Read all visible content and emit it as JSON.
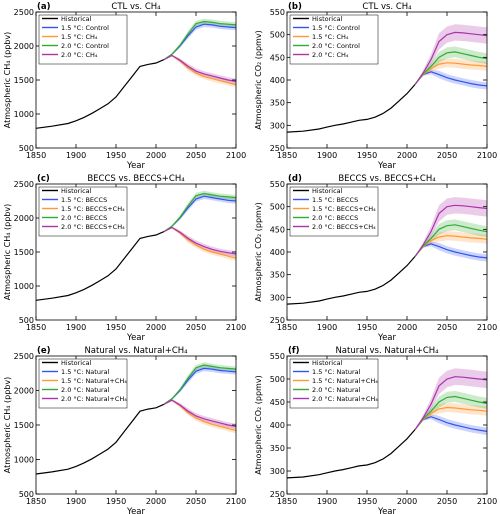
{
  "chart_data": [
    {
      "type": "line",
      "panel_label": "(a)",
      "title": "CTL vs. CH₄",
      "xlabel": "Year",
      "ylabel": "Atmospheric CH₄ (ppbv)",
      "xlim": [
        1850,
        2100
      ],
      "ylim": [
        500,
        2500
      ],
      "xticks": [
        1850,
        1900,
        1950,
        2000,
        2050,
        2100
      ],
      "yticks": [
        500,
        1000,
        1500,
        2000,
        2500
      ],
      "legend": "top-left",
      "series": [
        {
          "name": "Historical",
          "color": "#000000",
          "x": [
            1850,
            1870,
            1890,
            1900,
            1910,
            1920,
            1930,
            1940,
            1950,
            1960,
            1970,
            1980,
            1990,
            2000,
            2010
          ],
          "y": [
            790,
            820,
            860,
            900,
            950,
            1010,
            1080,
            1150,
            1250,
            1400,
            1550,
            1700,
            1730,
            1750,
            1800
          ]
        },
        {
          "name": "1.5 °C: Control",
          "color": "#3355ee",
          "x": [
            2010,
            2020,
            2030,
            2040,
            2050,
            2060,
            2070,
            2080,
            2090,
            2100
          ],
          "y": [
            1800,
            1880,
            2000,
            2150,
            2280,
            2320,
            2310,
            2290,
            2280,
            2270
          ],
          "band": 40
        },
        {
          "name": "1.5 °C: CH₄",
          "color": "#ff9933",
          "x": [
            2010,
            2020,
            2030,
            2040,
            2050,
            2060,
            2070,
            2080,
            2090,
            2100
          ],
          "y": [
            1800,
            1860,
            1780,
            1680,
            1600,
            1550,
            1520,
            1490,
            1460,
            1430
          ],
          "band": 40
        },
        {
          "name": "2.0 °C: Control",
          "color": "#33aa33",
          "x": [
            2010,
            2020,
            2030,
            2040,
            2050,
            2060,
            2070,
            2080,
            2090,
            2100
          ],
          "y": [
            1800,
            1880,
            2010,
            2180,
            2330,
            2360,
            2350,
            2330,
            2320,
            2310
          ],
          "band": 40
        },
        {
          "name": "2.0 °C: CH₄",
          "color": "#aa33aa",
          "x": [
            2010,
            2020,
            2030,
            2040,
            2050,
            2060,
            2070,
            2080,
            2090,
            2100
          ],
          "y": [
            1800,
            1860,
            1790,
            1700,
            1630,
            1590,
            1560,
            1530,
            1500,
            1480
          ],
          "band": 40
        }
      ]
    },
    {
      "type": "line",
      "panel_label": "(b)",
      "title": "CTL vs. CH₄",
      "xlabel": "Year",
      "ylabel": "Atmospheric CO₂ (ppmv)",
      "xlim": [
        1850,
        2100
      ],
      "ylim": [
        250,
        550
      ],
      "xticks": [
        1850,
        1900,
        1950,
        2000,
        2050,
        2100
      ],
      "yticks": [
        250,
        300,
        350,
        400,
        450,
        500,
        550
      ],
      "legend": "top-left",
      "series": [
        {
          "name": "Historical",
          "color": "#000000",
          "x": [
            1850,
            1870,
            1890,
            1900,
            1910,
            1920,
            1930,
            1940,
            1950,
            1960,
            1970,
            1980,
            1990,
            2000,
            2010
          ],
          "y": [
            285,
            287,
            292,
            296,
            300,
            303,
            307,
            311,
            313,
            318,
            326,
            338,
            354,
            370,
            390
          ]
        },
        {
          "name": "1.5 °C: Control",
          "color": "#3355ee",
          "x": [
            2010,
            2020,
            2030,
            2040,
            2050,
            2060,
            2070,
            2080,
            2090,
            2100
          ],
          "y": [
            390,
            412,
            418,
            412,
            405,
            400,
            396,
            392,
            389,
            387
          ],
          "band": 8
        },
        {
          "name": "1.5 °C: CH₄",
          "color": "#ff9933",
          "x": [
            2010,
            2020,
            2030,
            2040,
            2050,
            2060,
            2070,
            2080,
            2090,
            2100
          ],
          "y": [
            390,
            412,
            425,
            435,
            438,
            437,
            435,
            433,
            432,
            430
          ],
          "band": 10
        },
        {
          "name": "2.0 °C: Control",
          "color": "#33aa33",
          "x": [
            2010,
            2020,
            2030,
            2040,
            2050,
            2060,
            2070,
            2080,
            2090,
            2100
          ],
          "y": [
            390,
            413,
            430,
            450,
            460,
            462,
            458,
            454,
            450,
            447
          ],
          "band": 12
        },
        {
          "name": "2.0 °C: CH₄",
          "color": "#aa33aa",
          "x": [
            2010,
            2020,
            2030,
            2040,
            2050,
            2060,
            2070,
            2080,
            2090,
            2100
          ],
          "y": [
            390,
            415,
            445,
            485,
            500,
            505,
            504,
            502,
            500,
            498
          ],
          "band": 18
        }
      ]
    },
    {
      "type": "line",
      "panel_label": "(c)",
      "title": "BECCS vs. BECCS+CH₄",
      "xlabel": "Year",
      "ylabel": "Atmospheric CH₄ (ppbv)",
      "xlim": [
        1850,
        2100
      ],
      "ylim": [
        500,
        2500
      ],
      "xticks": [
        1850,
        1900,
        1950,
        2000,
        2050,
        2100
      ],
      "yticks": [
        500,
        1000,
        1500,
        2000,
        2500
      ],
      "legend": "top-left",
      "series": [
        {
          "name": "Historical",
          "color": "#000000",
          "x": [
            1850,
            1870,
            1890,
            1900,
            1910,
            1920,
            1930,
            1940,
            1950,
            1960,
            1970,
            1980,
            1990,
            2000,
            2010
          ],
          "y": [
            790,
            820,
            860,
            900,
            950,
            1010,
            1080,
            1150,
            1250,
            1400,
            1550,
            1700,
            1730,
            1750,
            1800
          ]
        },
        {
          "name": "1.5 °C: BECCS",
          "color": "#3355ee",
          "x": [
            2010,
            2020,
            2030,
            2040,
            2050,
            2060,
            2070,
            2080,
            2090,
            2100
          ],
          "y": [
            1800,
            1880,
            2000,
            2150,
            2280,
            2320,
            2300,
            2280,
            2260,
            2250
          ],
          "band": 40
        },
        {
          "name": "1.5 °C: BECCS+CH₄",
          "color": "#ff9933",
          "x": [
            2010,
            2020,
            2030,
            2040,
            2050,
            2060,
            2070,
            2080,
            2090,
            2100
          ],
          "y": [
            1800,
            1860,
            1780,
            1680,
            1600,
            1540,
            1500,
            1470,
            1440,
            1410
          ],
          "band": 40
        },
        {
          "name": "2.0 °C: BECCS",
          "color": "#33aa33",
          "x": [
            2010,
            2020,
            2030,
            2040,
            2050,
            2060,
            2070,
            2080,
            2090,
            2100
          ],
          "y": [
            1800,
            1880,
            2010,
            2180,
            2330,
            2360,
            2340,
            2320,
            2310,
            2300
          ],
          "band": 40
        },
        {
          "name": "2.0 °C: BECCS+CH₄",
          "color": "#aa33aa",
          "x": [
            2010,
            2020,
            2030,
            2040,
            2050,
            2060,
            2070,
            2080,
            2090,
            2100
          ],
          "y": [
            1800,
            1860,
            1790,
            1700,
            1630,
            1580,
            1540,
            1510,
            1490,
            1470
          ],
          "band": 40
        }
      ]
    },
    {
      "type": "line",
      "panel_label": "(d)",
      "title": "BECCS vs. BECCS+CH₄",
      "xlabel": "Year",
      "ylabel": "Atmospheric CO₂ (ppmv)",
      "xlim": [
        1850,
        2100
      ],
      "ylim": [
        250,
        550
      ],
      "xticks": [
        1850,
        1900,
        1950,
        2000,
        2050,
        2100
      ],
      "yticks": [
        250,
        300,
        350,
        400,
        450,
        500,
        550
      ],
      "legend": "top-left",
      "series": [
        {
          "name": "Historical",
          "color": "#000000",
          "x": [
            1850,
            1870,
            1890,
            1900,
            1910,
            1920,
            1930,
            1940,
            1950,
            1960,
            1970,
            1980,
            1990,
            2000,
            2010
          ],
          "y": [
            285,
            287,
            292,
            296,
            300,
            303,
            307,
            311,
            313,
            318,
            326,
            338,
            354,
            370,
            390
          ]
        },
        {
          "name": "1.5 °C: BECCS",
          "color": "#3355ee",
          "x": [
            2010,
            2020,
            2030,
            2040,
            2050,
            2060,
            2070,
            2080,
            2090,
            2100
          ],
          "y": [
            390,
            412,
            418,
            412,
            405,
            400,
            396,
            392,
            389,
            387
          ],
          "band": 8
        },
        {
          "name": "1.5 °C: BECCS+CH₄",
          "color": "#ff9933",
          "x": [
            2010,
            2020,
            2030,
            2040,
            2050,
            2060,
            2070,
            2080,
            2090,
            2100
          ],
          "y": [
            390,
            412,
            425,
            433,
            436,
            435,
            433,
            431,
            430,
            428
          ],
          "band": 10
        },
        {
          "name": "2.0 °C: BECCS",
          "color": "#33aa33",
          "x": [
            2010,
            2020,
            2030,
            2040,
            2050,
            2060,
            2070,
            2080,
            2090,
            2100
          ],
          "y": [
            390,
            413,
            430,
            450,
            458,
            460,
            456,
            452,
            448,
            445
          ],
          "band": 12
        },
        {
          "name": "2.0 °C: BECCS+CH₄",
          "color": "#aa33aa",
          "x": [
            2010,
            2020,
            2030,
            2040,
            2050,
            2060,
            2070,
            2080,
            2090,
            2100
          ],
          "y": [
            390,
            415,
            445,
            485,
            500,
            503,
            502,
            500,
            498,
            496
          ],
          "band": 18
        }
      ]
    },
    {
      "type": "line",
      "panel_label": "(e)",
      "title": "Natural vs. Natural+CH₄",
      "xlabel": "Year",
      "ylabel": "Atmospheric CH₄ (ppbv)",
      "xlim": [
        1850,
        2100
      ],
      "ylim": [
        500,
        2500
      ],
      "xticks": [
        1850,
        1900,
        1950,
        2000,
        2050,
        2100
      ],
      "yticks": [
        500,
        1000,
        1500,
        2000,
        2500
      ],
      "legend": "top-left",
      "series": [
        {
          "name": "Historical",
          "color": "#000000",
          "x": [
            1850,
            1870,
            1890,
            1900,
            1910,
            1920,
            1930,
            1940,
            1950,
            1960,
            1970,
            1980,
            1990,
            2000,
            2010
          ],
          "y": [
            790,
            820,
            860,
            900,
            950,
            1010,
            1080,
            1150,
            1250,
            1400,
            1550,
            1700,
            1730,
            1750,
            1800
          ]
        },
        {
          "name": "1.5 °C: Natural",
          "color": "#3355ee",
          "x": [
            2010,
            2020,
            2030,
            2040,
            2050,
            2060,
            2070,
            2080,
            2090,
            2100
          ],
          "y": [
            1800,
            1880,
            2000,
            2150,
            2280,
            2320,
            2310,
            2290,
            2280,
            2270
          ],
          "band": 40
        },
        {
          "name": "1.5 °C: Natural+CH₄",
          "color": "#ff9933",
          "x": [
            2010,
            2020,
            2030,
            2040,
            2050,
            2060,
            2070,
            2080,
            2090,
            2100
          ],
          "y": [
            1800,
            1860,
            1780,
            1680,
            1600,
            1550,
            1510,
            1480,
            1450,
            1420
          ],
          "band": 40
        },
        {
          "name": "2.0 °C: Natural",
          "color": "#33aa33",
          "x": [
            2010,
            2020,
            2030,
            2040,
            2050,
            2060,
            2070,
            2080,
            2090,
            2100
          ],
          "y": [
            1800,
            1880,
            2010,
            2180,
            2330,
            2370,
            2350,
            2330,
            2320,
            2310
          ],
          "band": 40
        },
        {
          "name": "2.0 °C: Natural+CH₄",
          "color": "#aa33aa",
          "x": [
            2010,
            2020,
            2030,
            2040,
            2050,
            2060,
            2070,
            2080,
            2090,
            2100
          ],
          "y": [
            1800,
            1860,
            1790,
            1700,
            1630,
            1590,
            1560,
            1530,
            1500,
            1480
          ],
          "band": 40
        }
      ]
    },
    {
      "type": "line",
      "panel_label": "(f)",
      "title": "Natural vs. Natural+CH₄",
      "xlabel": "Year",
      "ylabel": "Atmospheric CO₂ (ppmv)",
      "xlim": [
        1850,
        2100
      ],
      "ylim": [
        250,
        550
      ],
      "xticks": [
        1850,
        1900,
        1950,
        2000,
        2050,
        2100
      ],
      "yticks": [
        250,
        300,
        350,
        400,
        450,
        500,
        550
      ],
      "legend": "top-left",
      "series": [
        {
          "name": "Historical",
          "color": "#000000",
          "x": [
            1850,
            1870,
            1890,
            1900,
            1910,
            1920,
            1930,
            1940,
            1950,
            1960,
            1970,
            1980,
            1990,
            2000,
            2010
          ],
          "y": [
            285,
            287,
            292,
            296,
            300,
            303,
            307,
            311,
            313,
            318,
            326,
            338,
            354,
            370,
            390
          ]
        },
        {
          "name": "1.5 °C: Natural",
          "color": "#3355ee",
          "x": [
            2010,
            2020,
            2030,
            2040,
            2050,
            2060,
            2070,
            2080,
            2090,
            2100
          ],
          "y": [
            390,
            412,
            418,
            412,
            405,
            400,
            396,
            392,
            389,
            386
          ],
          "band": 8
        },
        {
          "name": "1.5 °C: Natural+CH₄",
          "color": "#ff9933",
          "x": [
            2010,
            2020,
            2030,
            2040,
            2050,
            2060,
            2070,
            2080,
            2090,
            2100
          ],
          "y": [
            390,
            412,
            425,
            435,
            438,
            437,
            435,
            433,
            432,
            430
          ],
          "band": 10
        },
        {
          "name": "2.0 °C: Natural",
          "color": "#33aa33",
          "x": [
            2010,
            2020,
            2030,
            2040,
            2050,
            2060,
            2070,
            2080,
            2090,
            2100
          ],
          "y": [
            390,
            413,
            430,
            450,
            460,
            462,
            458,
            454,
            450,
            447
          ],
          "band": 12
        },
        {
          "name": "2.0 °C: Natural+CH₄",
          "color": "#aa33aa",
          "x": [
            2010,
            2020,
            2030,
            2040,
            2050,
            2060,
            2070,
            2080,
            2090,
            2100
          ],
          "y": [
            390,
            415,
            445,
            485,
            500,
            505,
            504,
            502,
            500,
            498
          ],
          "band": 18
        }
      ]
    }
  ]
}
